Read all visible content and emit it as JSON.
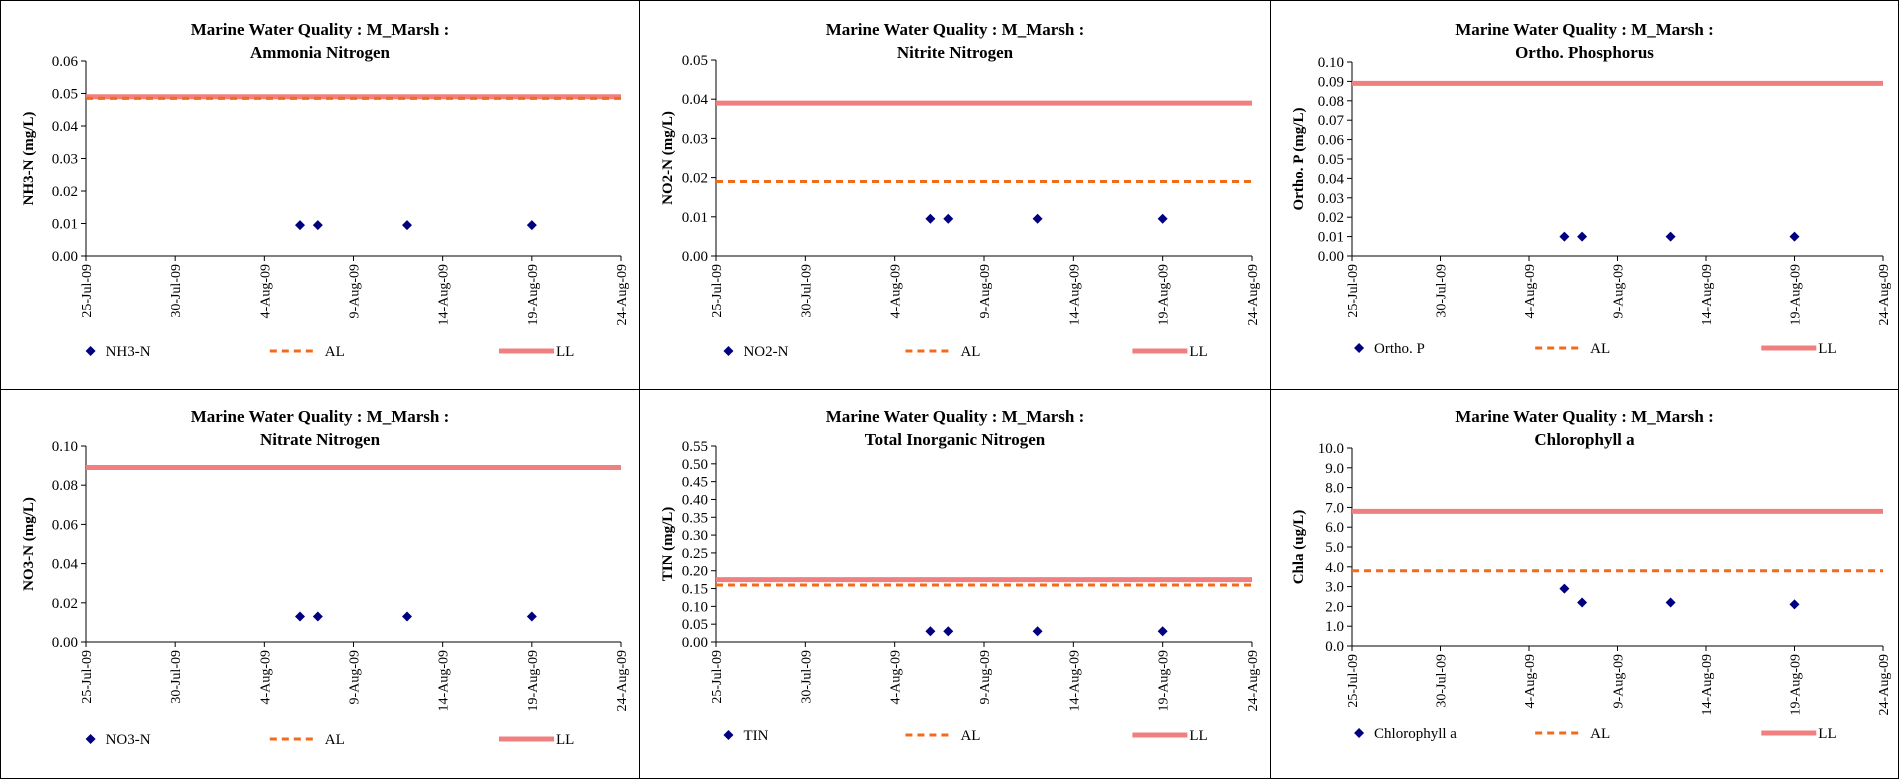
{
  "x_tick_labels": [
    "25-Jul-09",
    "30-Jul-09",
    "4-Aug-09",
    "9-Aug-09",
    "14-Aug-09",
    "19-Aug-09",
    "24-Aug-09"
  ],
  "colors": {
    "data": "#000080",
    "al": "#F26B1D",
    "ll": "#F08080"
  },
  "legend_labels": {
    "al": "AL",
    "ll": "LL"
  },
  "chart_data": [
    {
      "type": "scatter",
      "title": "Marine Water Quality : M_Marsh :",
      "subtitle": "Ammonia Nitrogen",
      "ylabel": "NH3-N (mg/L)",
      "ylim": [
        0,
        0.06
      ],
      "y_ticks": [
        "0.00",
        "0.01",
        "0.02",
        "0.03",
        "0.04",
        "0.05",
        "0.06"
      ],
      "xlim": [
        "2009-07-25",
        "2009-08-24"
      ],
      "series": [
        {
          "name": "NH3-N",
          "x": [
            "2009-08-06",
            "2009-08-07",
            "2009-08-12",
            "2009-08-19"
          ],
          "y": [
            0.0095,
            0.0095,
            0.0095,
            0.0095
          ]
        },
        {
          "name": "AL",
          "y": 0.0485
        },
        {
          "name": "LL",
          "y": 0.049
        }
      ],
      "legend_position": "bottom"
    },
    {
      "type": "scatter",
      "title": "Marine Water Quality : M_Marsh :",
      "subtitle": "Nitrite Nitrogen",
      "ylabel": "NO2-N (mg/L)",
      "ylim": [
        0,
        0.05
      ],
      "y_ticks": [
        "0.00",
        "0.01",
        "0.02",
        "0.03",
        "0.04",
        "0.05"
      ],
      "xlim": [
        "2009-07-25",
        "2009-08-24"
      ],
      "series": [
        {
          "name": "NO2-N",
          "x": [
            "2009-08-06",
            "2009-08-07",
            "2009-08-12",
            "2009-08-19"
          ],
          "y": [
            0.0095,
            0.0095,
            0.0095,
            0.0095
          ]
        },
        {
          "name": "AL",
          "y": 0.019
        },
        {
          "name": "LL",
          "y": 0.039
        }
      ],
      "legend_position": "bottom"
    },
    {
      "type": "scatter",
      "title": "Marine Water Quality : M_Marsh :",
      "subtitle": "Ortho. Phosphorus",
      "ylabel": "Ortho. P (mg/L)",
      "ylim": [
        0,
        0.1
      ],
      "y_ticks": [
        "0.00",
        "0.01",
        "0.02",
        "0.03",
        "0.04",
        "0.05",
        "0.06",
        "0.07",
        "0.08",
        "0.09",
        "0.10"
      ],
      "xlim": [
        "2009-07-25",
        "2009-08-24"
      ],
      "series": [
        {
          "name": "Ortho. P",
          "x": [
            "2009-08-06",
            "2009-08-07",
            "2009-08-12",
            "2009-08-19"
          ],
          "y": [
            0.01,
            0.01,
            0.01,
            0.01
          ]
        },
        {
          "name": "AL",
          "y": null
        },
        {
          "name": "LL",
          "y": 0.089
        }
      ],
      "legend_position": "bottom"
    },
    {
      "type": "scatter",
      "title": "Marine Water Quality : M_Marsh :",
      "subtitle": "Nitrate Nitrogen",
      "ylabel": "NO3-N (mg/L)",
      "ylim": [
        0,
        0.1
      ],
      "y_ticks": [
        "0.00",
        "0.02",
        "0.04",
        "0.06",
        "0.08",
        "0.10"
      ],
      "xlim": [
        "2009-07-25",
        "2009-08-24"
      ],
      "series": [
        {
          "name": "NO3-N",
          "x": [
            "2009-08-06",
            "2009-08-07",
            "2009-08-12",
            "2009-08-19"
          ],
          "y": [
            0.013,
            0.013,
            0.013,
            0.013
          ]
        },
        {
          "name": "AL",
          "y": null
        },
        {
          "name": "LL",
          "y": 0.089
        }
      ],
      "legend_position": "bottom"
    },
    {
      "type": "scatter",
      "title": "Marine Water Quality : M_Marsh :",
      "subtitle": "Total Inorganic Nitrogen",
      "ylabel": "TIN (mg/L)",
      "ylim": [
        0,
        0.55
      ],
      "y_ticks": [
        "0.00",
        "0.05",
        "0.10",
        "0.15",
        "0.20",
        "0.25",
        "0.30",
        "0.35",
        "0.40",
        "0.45",
        "0.50",
        "0.55"
      ],
      "xlim": [
        "2009-07-25",
        "2009-08-24"
      ],
      "series": [
        {
          "name": "TIN",
          "x": [
            "2009-08-06",
            "2009-08-07",
            "2009-08-12",
            "2009-08-19"
          ],
          "y": [
            0.03,
            0.03,
            0.03,
            0.03
          ]
        },
        {
          "name": "AL",
          "y": 0.16
        },
        {
          "name": "LL",
          "y": 0.175
        }
      ],
      "legend_position": "bottom"
    },
    {
      "type": "scatter",
      "title": "Marine Water Quality : M_Marsh :",
      "subtitle": "Chlorophyll a",
      "ylabel": "Chla (ug/L)",
      "ylim": [
        0,
        10
      ],
      "y_ticks": [
        "0.0",
        "1.0",
        "2.0",
        "3.0",
        "4.0",
        "5.0",
        "6.0",
        "7.0",
        "8.0",
        "9.0",
        "10.0"
      ],
      "xlim": [
        "2009-07-25",
        "2009-08-24"
      ],
      "series": [
        {
          "name": "Chlorophyll a",
          "x": [
            "2009-08-06",
            "2009-08-07",
            "2009-08-12",
            "2009-08-19"
          ],
          "y": [
            2.9,
            2.2,
            2.2,
            2.1
          ]
        },
        {
          "name": "AL",
          "y": 3.8
        },
        {
          "name": "LL",
          "y": 6.8
        }
      ],
      "legend_position": "bottom"
    }
  ]
}
